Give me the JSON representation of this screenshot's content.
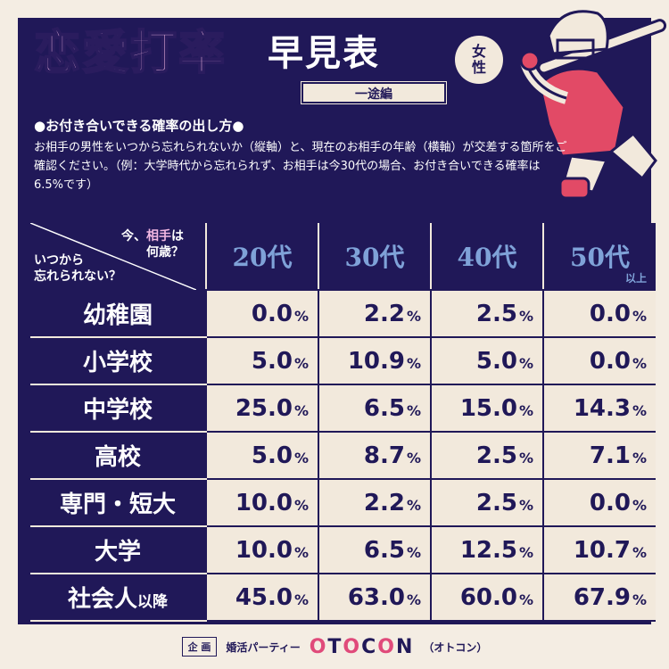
{
  "title": {
    "main": "恋愛打率",
    "sub": "早見表",
    "badge": "女性",
    "tag": "一途編"
  },
  "howto": {
    "heading": "●お付き合いできる確率の出し方●",
    "body": "お相手の男性をいつから忘れられないか（縦軸）と、現在のお相手の年齢（横軸）が交差する箇所をご確認ください。（例：大学時代から忘れられず、お相手は今30代の場合、お付き合いできる確率は6.5%です）"
  },
  "table": {
    "corner_top_pre": "今、",
    "corner_top_pink": "相手",
    "corner_top_post": "は",
    "corner_top_line2": "何歳？",
    "corner_bottom_line1": "いつから",
    "corner_bottom_line2": "忘れられない？",
    "columns": [
      "20代",
      "30代",
      "40代",
      "50代"
    ],
    "column_note": "以上",
    "unit": "%",
    "rows": [
      {
        "label": "幼稚園",
        "values": [
          "0.0",
          "2.2",
          "2.5",
          "0.0"
        ]
      },
      {
        "label": "小学校",
        "values": [
          "5.0",
          "10.9",
          "5.0",
          "0.0"
        ]
      },
      {
        "label": "中学校",
        "values": [
          "25.0",
          "6.5",
          "15.0",
          "14.3"
        ]
      },
      {
        "label": "高校",
        "values": [
          "5.0",
          "8.7",
          "2.5",
          "7.1"
        ]
      },
      {
        "label": "専門・短大",
        "values": [
          "10.0",
          "2.2",
          "2.5",
          "0.0"
        ]
      },
      {
        "label": "大学",
        "values": [
          "10.0",
          "6.5",
          "12.5",
          "10.7"
        ]
      },
      {
        "label": "社会人",
        "label_suffix": "以降",
        "values": [
          "45.0",
          "63.0",
          "60.0",
          "67.9"
        ]
      }
    ]
  },
  "footer": {
    "kikaku": "企 画",
    "service": "婚活パーティー",
    "logo": "OTOCON",
    "reading": "（オトコン）"
  },
  "colors": {
    "navy": "#201858",
    "cream": "#f2e9dc",
    "pink": "#f2b8e2",
    "header_blue": "#7fa2d8",
    "logo_accent": "#e04a7a"
  }
}
